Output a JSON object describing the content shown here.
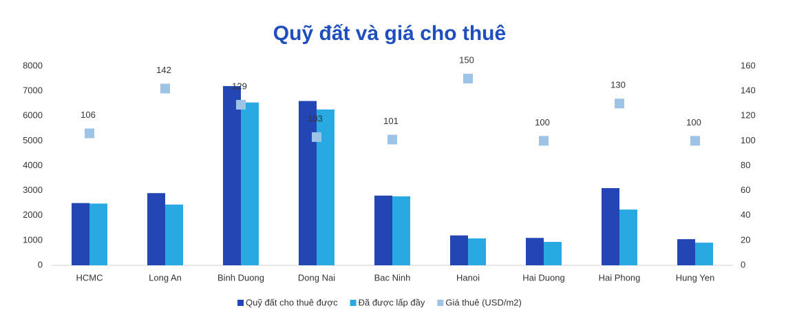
{
  "chart_data": {
    "type": "bar-scatter",
    "title": "Quỹ đất và giá cho thuê",
    "categories": [
      "HCMC",
      "Long An",
      "Binh Duong",
      "Dong Nai",
      "Bac Ninh",
      "Hanoi",
      "Hai Duong",
      "Hai Phong",
      "Hung Yen"
    ],
    "series": [
      {
        "name": "Quỹ đất cho thuê được",
        "color": "#2446b4",
        "values": [
          2500,
          2900,
          7200,
          6600,
          2800,
          1200,
          1100,
          3100,
          1050
        ]
      },
      {
        "name": "Đã được lấp đầy",
        "color": "#29a9e1",
        "values": [
          2480,
          2440,
          6540,
          6260,
          2770,
          1080,
          940,
          2240,
          910
        ]
      },
      {
        "name": "Giá thuê (USD/m2)",
        "color": "#9dc3e6",
        "axis": "y2",
        "values": [
          106,
          142,
          129,
          103,
          101,
          150,
          100,
          130,
          100
        ]
      }
    ],
    "ylim": [
      0,
      8000
    ],
    "yticks": [
      0,
      1000,
      2000,
      3000,
      4000,
      5000,
      6000,
      7000,
      8000
    ],
    "y2lim": [
      0,
      160
    ],
    "y2ticks": [
      0,
      20,
      40,
      60,
      80,
      100,
      120,
      140,
      160
    ]
  }
}
